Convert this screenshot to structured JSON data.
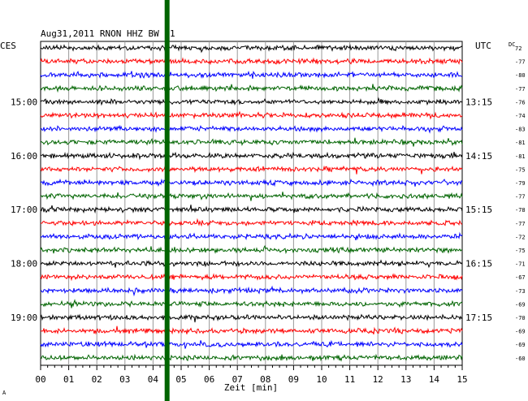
{
  "chart_data": {
    "type": "line",
    "title": "Aug31,2011   RNON HHZ BW 01",
    "left_timezone": "CES",
    "right_timezone": "UTC",
    "dc_label": "DC",
    "xlabel": "Zeit [min]",
    "xlim": [
      0,
      15
    ],
    "x_ticks": [
      "00",
      "01",
      "02",
      "03",
      "04",
      "05",
      "06",
      "07",
      "08",
      "09",
      "10",
      "11",
      "12",
      "13",
      "14",
      "15"
    ],
    "trace_colors": [
      "#000000",
      "#ff0000",
      "#0000ff",
      "#006400"
    ],
    "left_hour_labels": [
      {
        "row": 4,
        "text": "15:00"
      },
      {
        "row": 8,
        "text": "16:00"
      },
      {
        "row": 12,
        "text": "17:00"
      },
      {
        "row": 16,
        "text": "18:00"
      },
      {
        "row": 20,
        "text": "19:00"
      }
    ],
    "right_time_labels": [
      {
        "row": 4,
        "text": "13:15"
      },
      {
        "row": 8,
        "text": "14:15"
      },
      {
        "row": 12,
        "text": "15:15"
      },
      {
        "row": 16,
        "text": "16:15"
      },
      {
        "row": 20,
        "text": "17:15"
      }
    ],
    "dc_offsets": [
      "72",
      "-77",
      "-80",
      "-77",
      "-76",
      "-74",
      "-83",
      "-81",
      "-81",
      "-75",
      "-79",
      "-77",
      "-78",
      "-77",
      "-72",
      "-75",
      "-71",
      "-67",
      "-73",
      "-69",
      "-70",
      "-69",
      "-69",
      "-60"
    ],
    "marker_minute": 4.5,
    "marker_color": "#006400",
    "footer_mark": "A"
  }
}
